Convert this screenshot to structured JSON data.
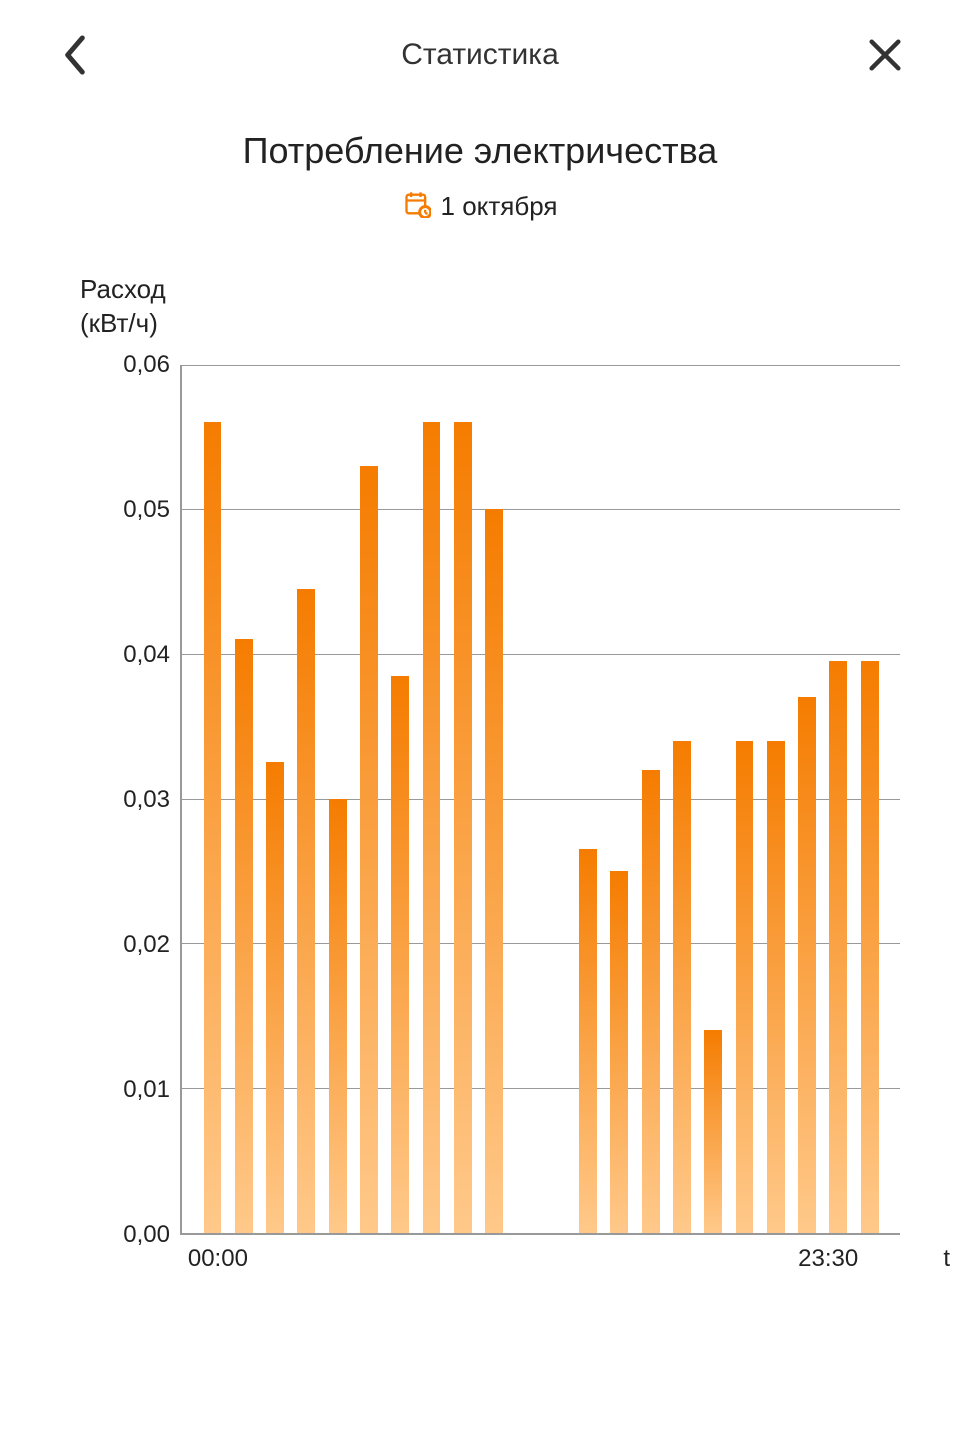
{
  "header": {
    "title": "Статистика"
  },
  "main": {
    "title": "Потребление электричества",
    "date": "1 октября"
  },
  "chart": {
    "type": "bar",
    "y_axis_title_line1": "Расход",
    "y_axis_title_line2": "(кВт/ч)",
    "x_axis_label": "t",
    "ylim": [
      0,
      0.06
    ],
    "y_ticks": [
      {
        "value": 0.0,
        "label": "0,00"
      },
      {
        "value": 0.01,
        "label": "0,01"
      },
      {
        "value": 0.02,
        "label": "0,02"
      },
      {
        "value": 0.03,
        "label": "0,03"
      },
      {
        "value": 0.04,
        "label": "0,04"
      },
      {
        "value": 0.05,
        "label": "0,05"
      },
      {
        "value": 0.06,
        "label": "0,06"
      }
    ],
    "x_ticks": [
      {
        "label": "00:00",
        "position": 0.05
      },
      {
        "label": "23:30",
        "position": 0.9
      }
    ],
    "bar_gradient_top": "#f57c00",
    "bar_gradient_bottom": "#ffc98a",
    "grid_color": "#999999",
    "background_color": "#ffffff",
    "values": [
      0.056,
      0.041,
      0.0325,
      0.0445,
      0.03,
      0.053,
      0.0385,
      0.056,
      0.056,
      0.05,
      1e-07,
      1e-07,
      0.0265,
      0.025,
      0.032,
      0.034,
      0.014,
      0.034,
      0.034,
      0.037,
      0.0395,
      0.0395
    ],
    "gap_indices": [
      10,
      11
    ]
  }
}
